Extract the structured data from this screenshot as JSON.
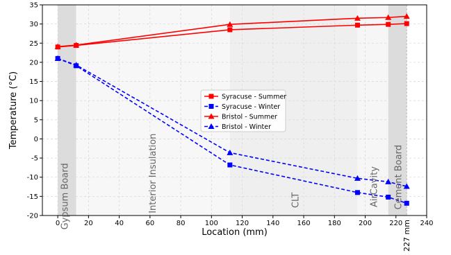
{
  "chart_data": {
    "type": "line",
    "xlabel": "Location (mm)",
    "ylabel": "Temperature (°C)",
    "xlim": [
      -10,
      240
    ],
    "ylim": [
      -20,
      35
    ],
    "xticks": [
      0,
      20,
      40,
      60,
      80,
      100,
      120,
      140,
      160,
      180,
      200,
      220,
      240
    ],
    "yticks": [
      -20,
      -15,
      -10,
      -5,
      0,
      5,
      10,
      15,
      20,
      25,
      30,
      35
    ],
    "grid": true,
    "legend_position": "center",
    "regions": [
      {
        "label": "Gypsum Board",
        "x0": 0,
        "x1": 12,
        "shade": "#dcdcdc",
        "label_x": 5,
        "label_y": -15
      },
      {
        "label": "Interior Insulation",
        "x0": 12,
        "x1": 112,
        "shade": "#f7f7f7",
        "label_x": 62,
        "label_y": -9
      },
      {
        "label": "CLT",
        "x0": 112,
        "x1": 195,
        "shade": "#efefef",
        "label_x": 155,
        "label_y": -16
      },
      {
        "label": "AirCavity",
        "x0": 195,
        "x1": 215,
        "shade": "#f6f6f6",
        "label_x": 206,
        "label_y": -12.5
      },
      {
        "label": "Cement Board",
        "x0": 215,
        "x1": 227,
        "shade": "#dcdcdc",
        "label_x": 222,
        "label_y": -10
      }
    ],
    "dimension_label": {
      "text": "227 mm",
      "x": 227
    },
    "series": [
      {
        "name": "Syracuse - Summer",
        "color": "#ff0000",
        "linestyle": "solid",
        "marker": "square",
        "x": [
          0,
          12,
          112,
          195,
          215,
          227
        ],
        "y": [
          24.0,
          24.4,
          28.5,
          29.7,
          29.9,
          30.1
        ]
      },
      {
        "name": "Syracuse - Winter",
        "color": "#0000ff",
        "linestyle": "dashed",
        "marker": "square",
        "x": [
          0,
          12,
          112,
          195,
          215,
          227
        ],
        "y": [
          21.0,
          19.1,
          -6.8,
          -14.0,
          -15.2,
          -16.8
        ]
      },
      {
        "name": "Bristol - Summer",
        "color": "#ff0000",
        "linestyle": "solid",
        "marker": "triangle",
        "x": [
          0,
          12,
          112,
          195,
          215,
          227
        ],
        "y": [
          24.1,
          24.5,
          29.9,
          31.5,
          31.7,
          32.0
        ]
      },
      {
        "name": "Bristol - Winter",
        "color": "#0000ff",
        "linestyle": "dashed",
        "marker": "triangle",
        "x": [
          0,
          12,
          112,
          195,
          215,
          227
        ],
        "y": [
          21.0,
          19.3,
          -3.6,
          -10.3,
          -11.2,
          -12.4
        ]
      }
    ]
  }
}
